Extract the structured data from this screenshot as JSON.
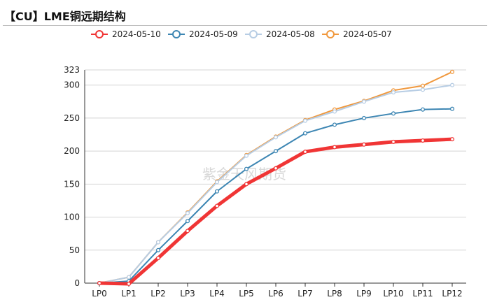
{
  "title": "【CU】LME铜远期结构",
  "watermark": "紫金天风期货",
  "chart_data": {
    "type": "line",
    "categories": [
      "LP0",
      "LP1",
      "LP2",
      "LP3",
      "LP4",
      "LP5",
      "LP6",
      "LP7",
      "LP8",
      "LP9",
      "LP10",
      "LP11",
      "LP12"
    ],
    "ylim": [
      0,
      323
    ],
    "yticks": [
      0,
      50,
      100,
      150,
      200,
      250,
      300,
      323
    ],
    "grid": true,
    "legend_position": "top",
    "series": [
      {
        "name": "2024-05-10",
        "color": "#f03535",
        "width": 5,
        "values": [
          0,
          -1,
          38,
          79,
          117,
          150,
          174,
          199,
          206,
          210,
          214,
          216,
          218
        ]
      },
      {
        "name": "2024-05-09",
        "color": "#3d86b3",
        "width": 2,
        "values": [
          0,
          3,
          50,
          94,
          139,
          173,
          200,
          227,
          240,
          250,
          257,
          263,
          264
        ]
      },
      {
        "name": "2024-05-08",
        "color": "#b7cde4",
        "width": 2,
        "values": [
          0,
          9,
          62,
          106,
          153,
          193,
          221,
          246,
          260,
          275,
          289,
          293,
          300
        ]
      },
      {
        "name": "2024-05-07",
        "color": "#f0983d",
        "width": 2,
        "values": [
          0,
          9,
          62,
          107,
          154,
          194,
          222,
          247,
          263,
          276,
          292,
          299,
          320
        ]
      }
    ]
  }
}
